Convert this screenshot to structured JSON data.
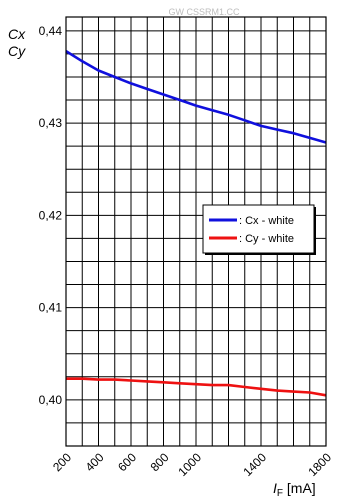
{
  "watermark": "GW CSSRM1.CC",
  "chart_data": {
    "type": "line",
    "ylabel_lines": [
      "Cx",
      "Cy"
    ],
    "xlabel_main": "I",
    "xlabel_sub": "F",
    "xlabel_unit": " [mA]",
    "x_ticks": [
      200,
      400,
      600,
      800,
      1000,
      1400,
      1800
    ],
    "y_ticks": [
      "0,40",
      "0,41",
      "0,42",
      "0,43",
      "0,44"
    ],
    "xlim": [
      200,
      1800
    ],
    "ylim": [
      0.395,
      0.4415
    ],
    "grid": true,
    "legend_position": "right-middle",
    "series": [
      {
        "name": ": Cx - white",
        "color": "#1010dd",
        "x": [
          200,
          300,
          400,
          500,
          600,
          700,
          800,
          900,
          1000,
          1100,
          1200,
          1300,
          1400,
          1500,
          1600,
          1700,
          1800
        ],
        "y": [
          0.4378,
          0.4367,
          0.4357,
          0.435,
          0.4343,
          0.4337,
          0.4331,
          0.4325,
          0.4319,
          0.4314,
          0.4309,
          0.4303,
          0.4297,
          0.4293,
          0.4289,
          0.4284,
          0.4279
        ]
      },
      {
        "name": ": Cy - white",
        "color": "#ee1111",
        "x": [
          200,
          300,
          400,
          500,
          600,
          700,
          800,
          900,
          1000,
          1100,
          1200,
          1300,
          1400,
          1500,
          1600,
          1700,
          1800
        ],
        "y": [
          0.4023,
          0.4023,
          0.4022,
          0.4022,
          0.4021,
          0.402,
          0.4019,
          0.4018,
          0.4017,
          0.4016,
          0.4016,
          0.4014,
          0.4012,
          0.401,
          0.4009,
          0.4008,
          0.4005
        ]
      }
    ]
  }
}
